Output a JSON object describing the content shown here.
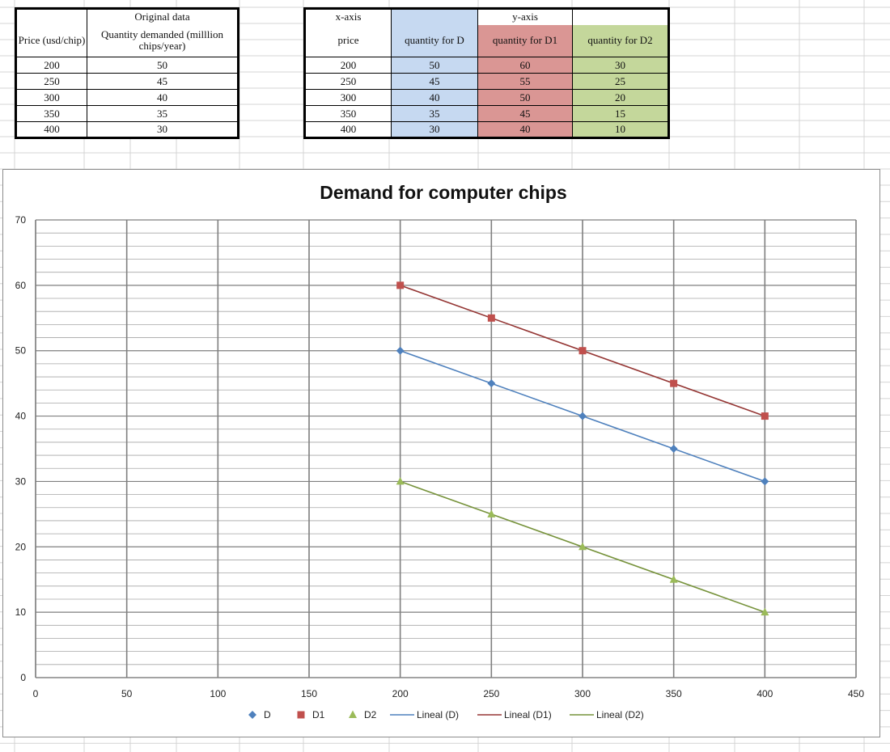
{
  "table1": {
    "header_top": "Original data",
    "col1_header": "Price (usd/chip)",
    "col2_header": "Quantity demanded (milllion chips/year)",
    "rows": [
      [
        "200",
        "50"
      ],
      [
        "250",
        "45"
      ],
      [
        "300",
        "40"
      ],
      [
        "350",
        "35"
      ],
      [
        "400",
        "30"
      ]
    ]
  },
  "table2": {
    "xaxis_label": "x-axis",
    "yaxis_label": "y-axis",
    "col_headers": [
      "price",
      "quantity for D",
      "quantity for D1",
      "quantity for D2"
    ],
    "rows": [
      [
        "200",
        "50",
        "60",
        "30"
      ],
      [
        "250",
        "45",
        "55",
        "25"
      ],
      [
        "300",
        "40",
        "50",
        "20"
      ],
      [
        "350",
        "35",
        "45",
        "15"
      ],
      [
        "400",
        "30",
        "40",
        "10"
      ]
    ],
    "colors": {
      "D": "#c6d9f1",
      "D1": "#da9694",
      "D2": "#c4d79b"
    }
  },
  "chart_data": {
    "type": "scatter",
    "title": "Demand for computer chips",
    "xlabel": "",
    "ylabel": "",
    "xlim": [
      0,
      450
    ],
    "ylim": [
      0,
      70
    ],
    "x_ticks": [
      0,
      50,
      100,
      150,
      200,
      250,
      300,
      350,
      400,
      450
    ],
    "y_ticks": [
      0,
      10,
      20,
      30,
      40,
      50,
      60,
      70
    ],
    "grid": true,
    "legend_position": "bottom",
    "x": [
      200,
      250,
      300,
      350,
      400
    ],
    "series": [
      {
        "name": "D",
        "values": [
          50,
          45,
          40,
          35,
          30
        ],
        "marker": "diamond",
        "color": "#4f81bd"
      },
      {
        "name": "D1",
        "values": [
          60,
          55,
          50,
          45,
          40
        ],
        "marker": "square",
        "color": "#c0504d"
      },
      {
        "name": "D2",
        "values": [
          30,
          25,
          20,
          15,
          10
        ],
        "marker": "triangle",
        "color": "#9bbb59"
      }
    ],
    "trendlines": [
      {
        "name": "Lineal (D)",
        "color": "#4f81bd"
      },
      {
        "name": "Lineal (D1)",
        "color": "#953735"
      },
      {
        "name": "Lineal (D2)",
        "color": "#77933c"
      }
    ]
  }
}
